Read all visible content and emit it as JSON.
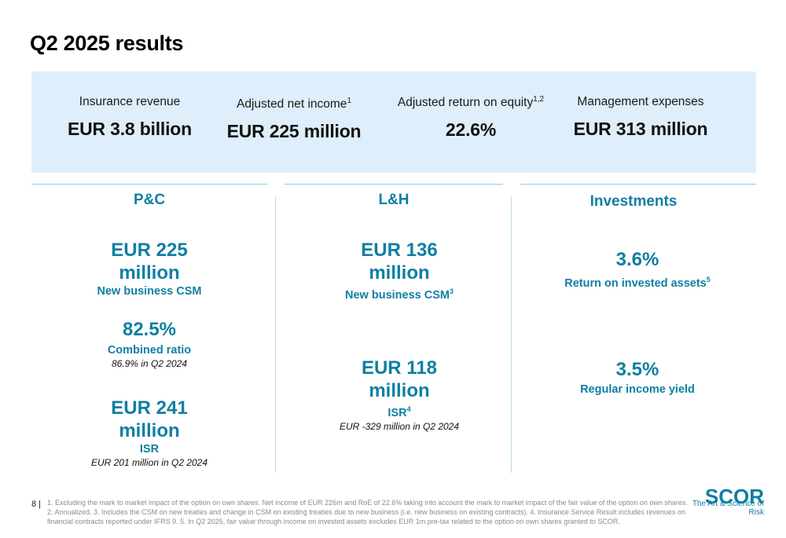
{
  "page": {
    "title": "Q2 2025 results",
    "page_number": "8 |"
  },
  "kpis": [
    {
      "label": "Insurance revenue",
      "sup": "",
      "value": "EUR 3.8 billion"
    },
    {
      "label": "Adjusted net income",
      "sup": "1",
      "value": "EUR 225 million"
    },
    {
      "label": "Adjusted return on equity",
      "sup": "1,2",
      "value": "22.6%"
    },
    {
      "label": "Management expenses",
      "sup": "",
      "value": "EUR 313 million"
    }
  ],
  "pc": {
    "title": "P&C",
    "csm_value_1": "EUR 225",
    "csm_value_2": "million",
    "csm_label": "New business CSM",
    "cr_value": "82.5%",
    "cr_label": "Combined ratio",
    "cr_note": "86.9% in Q2 2024",
    "isr_value_1": "EUR 241",
    "isr_value_2": "million",
    "isr_label": "ISR",
    "isr_note": "EUR 201 million in Q2 2024"
  },
  "lh": {
    "title": "L&H",
    "csm_value_1": "EUR 136",
    "csm_value_2": "million",
    "csm_label": "New business CSM",
    "csm_sup": "3",
    "isr_value_1": "EUR 118",
    "isr_value_2": "million",
    "isr_label": "ISR",
    "isr_sup": "4",
    "isr_note": "EUR -329 million in Q2 2024"
  },
  "investments": {
    "title": "Investments",
    "roia_value": "3.6%",
    "roia_label": "Return on invested assets",
    "roia_sup": "5",
    "riy_value": "3.5%",
    "riy_label": "Regular income yield"
  },
  "footer": {
    "footnote": "1. Excluding the mark to market impact of the option on own shares. Net income of EUR 226m and RoE of 22.6% taking into account the mark to market impact of the fair value of the option on own shares. 2. Annualized. 3. Includes the CSM on new treaties and change in CSM on existing treaties due to new business (i.e. new business on existing contracts). 4. Insurance Service Result includes revenues on financial contracts reported under IFRS 9. 5. In Q2 2025, fair value through income on invested assets excludes EUR 1m pre-tax related to the option on own shares granted to SCOR.",
    "logo_text": "SCOR",
    "logo_tagline": "The Art & Science of Risk"
  },
  "colors": {
    "accent": "#0f7fa3",
    "kpi_background": "#deeefa",
    "divider": "#8fcfe6"
  }
}
